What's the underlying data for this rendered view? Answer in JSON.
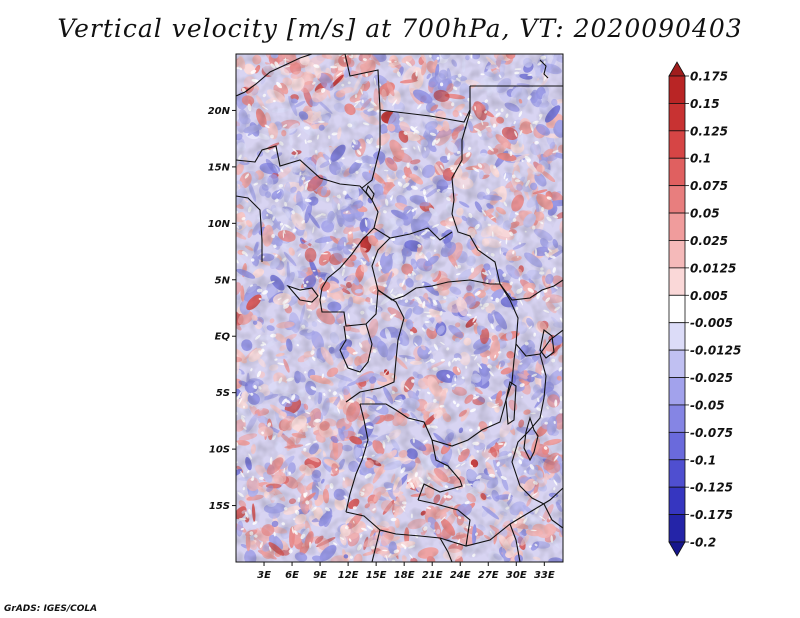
{
  "title": "Vertical velocity [m/s] at 700hPa, VT: 2020090403",
  "credit": "GrADS: IGES/COLA",
  "map": {
    "lat_ticks": [
      "20N",
      "15N",
      "10N",
      "5N",
      "EQ",
      "5S",
      "10S",
      "15S"
    ],
    "lon_ticks": [
      "3E",
      "6E",
      "9E",
      "12E",
      "15E",
      "18E",
      "21E",
      "24E",
      "27E",
      "30E",
      "33E"
    ],
    "lat_range": [
      -20,
      25
    ],
    "lon_range": [
      0,
      35
    ]
  },
  "colorbar": {
    "labels": [
      "0.175",
      "0.15",
      "0.125",
      "0.1",
      "0.075",
      "0.05",
      "0.025",
      "0.0125",
      "0.005",
      "-0.005",
      "-0.0125",
      "-0.025",
      "-0.05",
      "-0.075",
      "-0.1",
      "-0.125",
      "-0.175",
      "-0.2"
    ],
    "colors": [
      "#a01d1d",
      "#b92525",
      "#c83232",
      "#d64545",
      "#e06060",
      "#e87e7e",
      "#f09c9c",
      "#f5baba",
      "#fad8d8",
      "#ffffff",
      "#dcdcf8",
      "#c0c0f2",
      "#a2a2ec",
      "#8585e4",
      "#6a6adc",
      "#4f4fd0",
      "#3636c0",
      "#2424a8",
      "#16168c"
    ]
  }
}
